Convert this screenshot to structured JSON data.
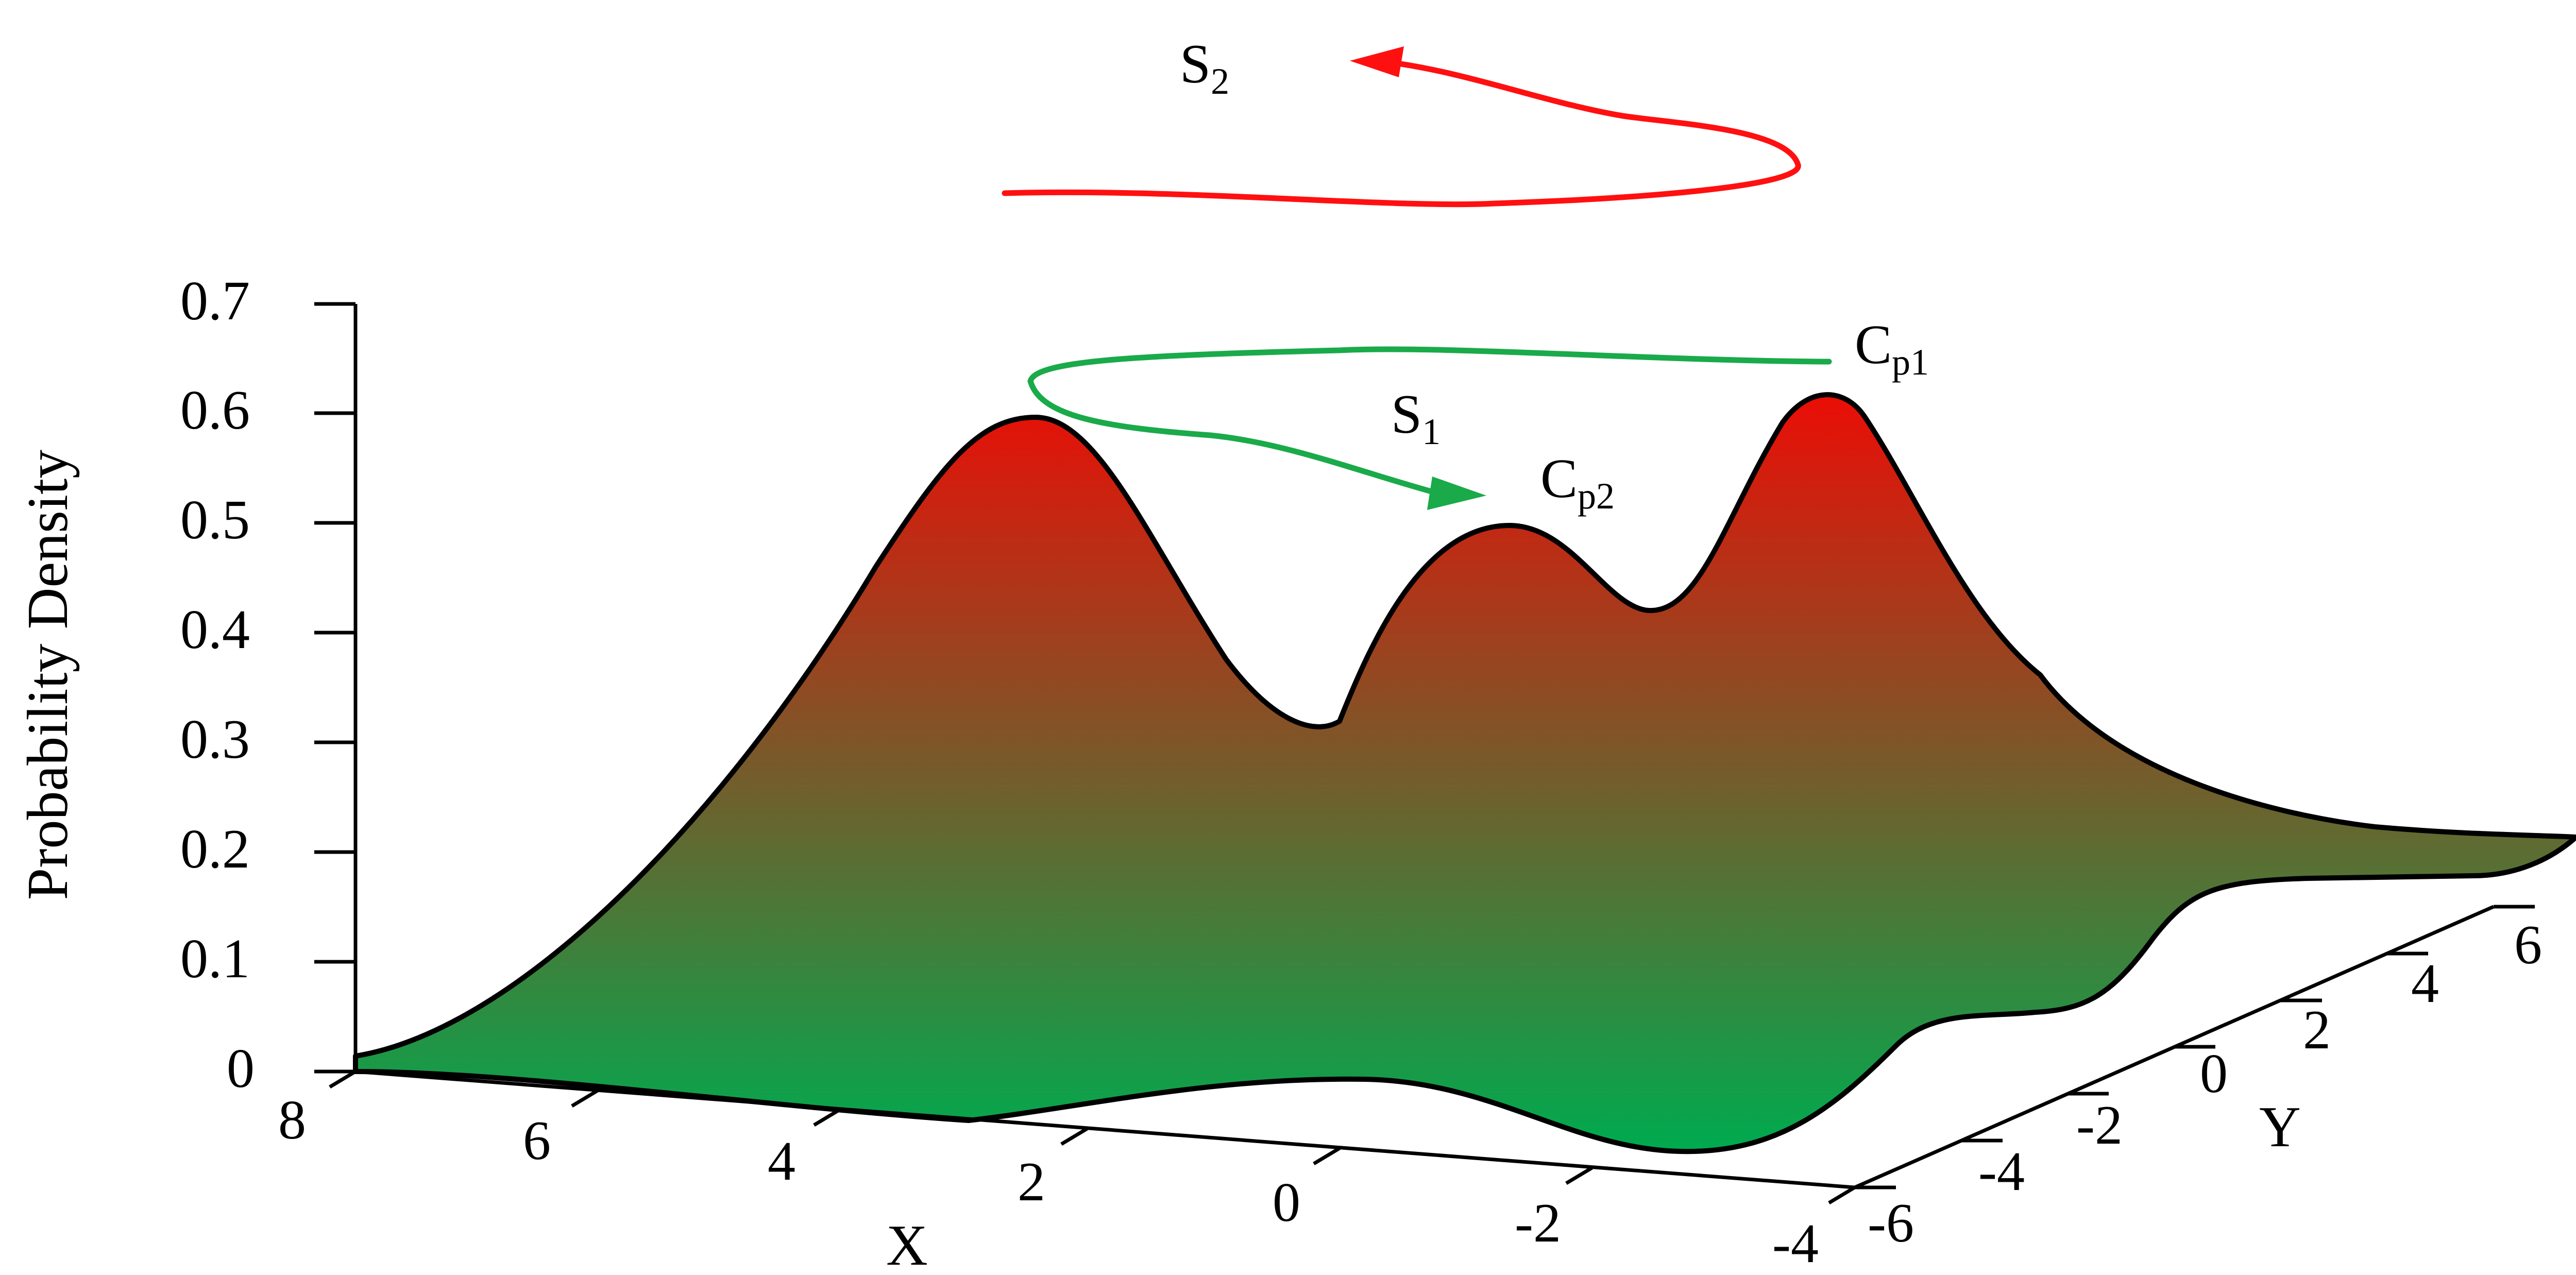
{
  "chart_data": {
    "type": "area",
    "ylabel": "Probability Density",
    "xlabel": "X",
    "zlabel": "Y",
    "ylim": [
      0,
      0.7
    ],
    "y_ticks": [
      "0",
      "0.1",
      "0.2",
      "0.3",
      "0.4",
      "0.5",
      "0.6",
      "0.7"
    ],
    "x_ticks": [
      "8",
      "6",
      "4",
      "2",
      "0",
      "-2",
      "-4"
    ],
    "z_ticks": [
      "-6",
      "-4",
      "-2",
      "0",
      "2",
      "4",
      "6"
    ],
    "grid": false,
    "legend": "none",
    "curve_profile": {
      "description_units": "probability density along the front ridge, left to right",
      "peaks": [
        {
          "label_position": "left peak",
          "density": 0.59
        },
        {
          "label_position": "middle peak",
          "density": 0.5
        },
        {
          "label_position": "right peak",
          "density": 0.61
        }
      ],
      "valleys": [
        {
          "density": 0.31
        },
        {
          "density": 0.42
        }
      ],
      "tail_density": 0.21
    },
    "colors": {
      "surface_top": "#ff0000",
      "surface_bottom": "#00aa4f",
      "path_s1": "#1aaa4a",
      "path_s2": "#ff1010"
    },
    "annotations": {
      "s2": {
        "main": "S",
        "sub": "2"
      },
      "s1": {
        "main": "S",
        "sub": "1"
      },
      "cp1": {
        "main": "C",
        "sub": "p1"
      },
      "cp2": {
        "main": "C",
        "sub": "p2"
      }
    }
  }
}
